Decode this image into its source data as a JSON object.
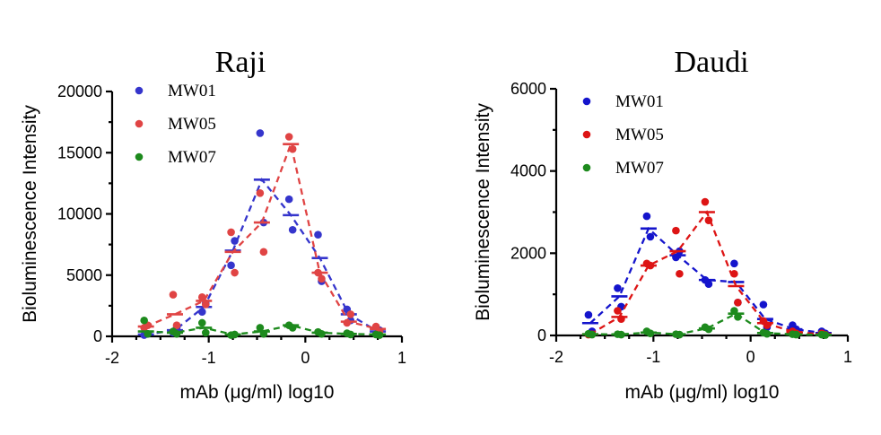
{
  "chart_data": [
    {
      "type": "scatter",
      "title": "Raji",
      "xlabel": "mAb (μg/ml) log10",
      "ylabel": "Bioluminescence Intensity",
      "xlim": [
        -2,
        1
      ],
      "ylim": [
        0,
        20000
      ],
      "xticks": [
        "-2",
        "-1",
        "0",
        "1"
      ],
      "yticks": [
        "0",
        "5000",
        "10000",
        "15000",
        "20000"
      ],
      "legend_position": "top-left",
      "series": [
        {
          "name": "MW01",
          "color": "#3535cc",
          "x": [
            -1.65,
            -1.35,
            -1.05,
            -0.75,
            -0.45,
            -0.15,
            0.15,
            0.45,
            0.75
          ],
          "points": [
            [
              100,
              200
            ],
            [
              300,
              700
            ],
            [
              2000,
              2700
            ],
            [
              5800,
              7800
            ],
            [
              16600,
              9300
            ],
            [
              11200,
              8700
            ],
            [
              8300,
              4500
            ],
            [
              2200,
              1300
            ],
            [
              200,
              500
            ]
          ],
          "mean": [
            150,
            500,
            2400,
            7000,
            12800,
            9900,
            6400,
            1800,
            400
          ]
        },
        {
          "name": "MW05",
          "color": "#e04444",
          "x": [
            -1.65,
            -1.35,
            -1.05,
            -0.75,
            -0.45,
            -0.15,
            0.15,
            0.45,
            0.75
          ],
          "points": [
            [
              700,
              900
            ],
            [
              3400,
              900
            ],
            [
              3200,
              2600
            ],
            [
              8500,
              5200
            ],
            [
              11700,
              6900
            ],
            [
              16300,
              15300
            ],
            [
              5200,
              4700
            ],
            [
              1100,
              1800
            ],
            [
              800,
              400
            ]
          ],
          "mean": [
            800,
            1800,
            2900,
            6900,
            9300,
            15700,
            5200,
            1200,
            600
          ]
        },
        {
          "name": "MW07",
          "color": "#1d8a1d",
          "x": [
            -1.65,
            -1.35,
            -1.05,
            -0.75,
            -0.45,
            -0.15,
            0.15,
            0.45,
            0.75
          ],
          "points": [
            [
              1300,
              200
            ],
            [
              400,
              200
            ],
            [
              1100,
              300
            ],
            [
              100,
              150
            ],
            [
              700,
              200
            ],
            [
              900,
              700
            ],
            [
              350,
              200
            ],
            [
              250,
              150
            ],
            [
              150,
              100
            ]
          ],
          "mean": [
            400,
            300,
            700,
            150,
            400,
            900,
            300,
            200,
            150
          ]
        }
      ]
    },
    {
      "type": "scatter",
      "title": "Daudi",
      "xlabel": "mAb (μg/ml) log10",
      "ylabel": "Bioluminescence Intensity",
      "xlim": [
        -2,
        1
      ],
      "ylim": [
        0,
        6000
      ],
      "xticks": [
        "-2",
        "-1",
        "0",
        "1"
      ],
      "yticks": [
        "0",
        "2000",
        "4000",
        "6000"
      ],
      "legend_position": "top-left",
      "series": [
        {
          "name": "MW01",
          "color": "#1414cc",
          "x": [
            -1.65,
            -1.35,
            -1.05,
            -0.75,
            -0.45,
            -0.15,
            0.15,
            0.45,
            0.75
          ],
          "points": [
            [
              500,
              100
            ],
            [
              1150,
              700
            ],
            [
              2900,
              2400
            ],
            [
              1900,
              2050
            ],
            [
              1350,
              1250
            ],
            [
              1750,
              800
            ],
            [
              750,
              200
            ],
            [
              250,
              150
            ],
            [
              100,
              50
            ]
          ],
          "mean": [
            300,
            950,
            2600,
            1950,
            1350,
            1300,
            400,
            150,
            60
          ]
        },
        {
          "name": "MW05",
          "color": "#dd1414",
          "x": [
            -1.65,
            -1.35,
            -1.05,
            -0.75,
            -0.45,
            -0.15,
            0.15,
            0.45,
            0.75
          ],
          "points": [
            [
              20,
              30
            ],
            [
              600,
              400
            ],
            [
              1750,
              1700
            ],
            [
              2550,
              1500
            ],
            [
              3250,
              2800
            ],
            [
              1500,
              800
            ],
            [
              350,
              250
            ],
            [
              100,
              50
            ],
            [
              50,
              20
            ]
          ],
          "mean": [
            30,
            450,
            1700,
            2050,
            3000,
            1200,
            300,
            80,
            30
          ]
        },
        {
          "name": "MW07",
          "color": "#1d8a1d",
          "x": [
            -1.65,
            -1.35,
            -1.05,
            -0.75,
            -0.45,
            -0.15,
            0.15,
            0.45,
            0.75
          ],
          "points": [
            [
              40,
              20
            ],
            [
              30,
              20
            ],
            [
              100,
              50
            ],
            [
              30,
              20
            ],
            [
              200,
              150
            ],
            [
              600,
              450
            ],
            [
              70,
              40
            ],
            [
              30,
              20
            ],
            [
              20,
              10
            ]
          ],
          "mean": [
            30,
            25,
            70,
            30,
            170,
            530,
            60,
            25,
            15
          ]
        }
      ]
    }
  ]
}
